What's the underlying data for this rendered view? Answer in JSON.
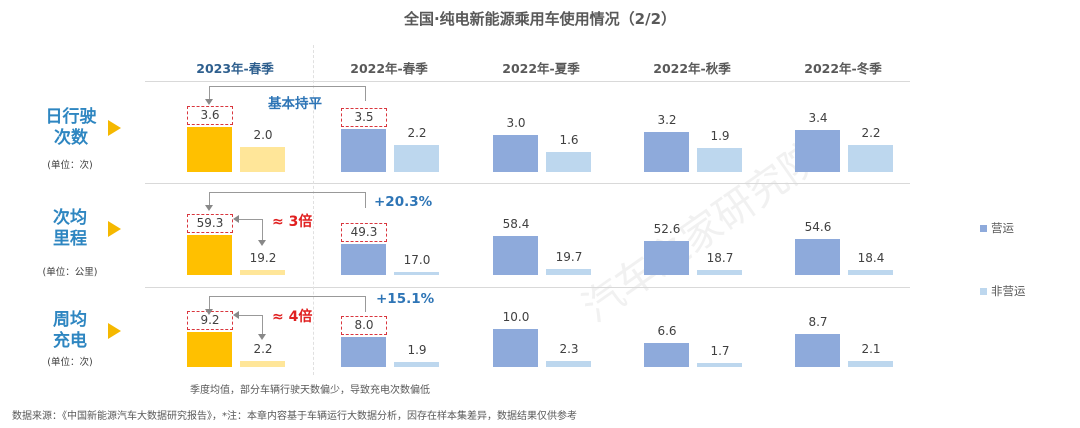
{
  "title": "全国·纯电新能源乘用车使用情况（2/2）",
  "colors": {
    "current_operating": "#ffc000",
    "current_non_operating": "#ffe699",
    "operating": "#8eaadb",
    "non_operating": "#bdd7ee",
    "highlight_box": "#d9363e",
    "note_blue": "#2e75b6",
    "note_red": "#e02020",
    "row_label": "#2e86c1"
  },
  "rows": [
    {
      "label_line1": "日行驶",
      "label_line2": "次数",
      "unit": "(单位：次)"
    },
    {
      "label_line1": "次均",
      "label_line2": "里程",
      "unit": "(单位：公里)"
    },
    {
      "label_line1": "周均",
      "label_line2": "充电",
      "unit": "(单位：次)"
    }
  ],
  "annotations": {
    "row1_compare": "基本持平",
    "row2_change": "+20.3%",
    "row2_ratio": "≈  3倍",
    "row3_change": "+15.1%",
    "row3_ratio": "≈  4倍"
  },
  "legend": [
    "营运",
    "非营运"
  ],
  "note": "季度均值，部分车辆行驶天数偏少，导致充电次数偏低",
  "source": "数据来源：《中国新能源汽车大数据研究报告》，*注：本章内容基于车辆运行大数据分析，因存在样本集差异，数据结果仅供参考",
  "watermark": "汽车之家研究院",
  "chart_data": {
    "type": "bar",
    "title": "全国·纯电新能源乘用车使用情况（2/2）",
    "categories": [
      "2023年-春季",
      "2022年-春季",
      "2022年-夏季",
      "2022年-秋季",
      "2022年-冬季"
    ],
    "legend_position": "right",
    "panels": [
      {
        "metric": "日行驶次数",
        "unit": "次",
        "series": [
          {
            "name": "营运",
            "values": [
              3.6,
              3.5,
              3.0,
              3.2,
              3.4
            ]
          },
          {
            "name": "非营运",
            "values": [
              2.0,
              2.2,
              1.6,
              1.9,
              2.2
            ]
          }
        ]
      },
      {
        "metric": "次均里程",
        "unit": "公里",
        "series": [
          {
            "name": "营运",
            "values": [
              59.3,
              49.3,
              58.4,
              52.6,
              54.6
            ]
          },
          {
            "name": "非营运",
            "values": [
              19.2,
              17.0,
              19.7,
              18.7,
              18.4
            ]
          }
        ]
      },
      {
        "metric": "周均充电",
        "unit": "次",
        "series": [
          {
            "name": "营运",
            "values": [
              9.2,
              8.0,
              10.0,
              6.6,
              8.7
            ]
          },
          {
            "name": "非营运",
            "values": [
              2.2,
              1.9,
              2.3,
              1.7,
              2.1
            ]
          }
        ]
      }
    ]
  }
}
